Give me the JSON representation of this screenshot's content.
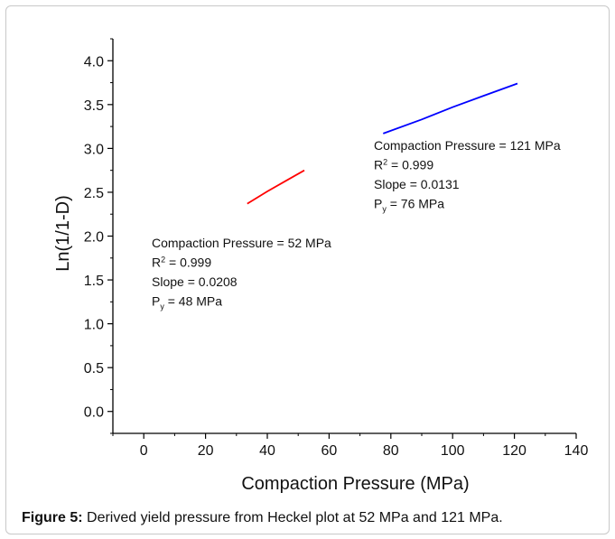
{
  "chart_data": {
    "type": "line",
    "xlabel": "Compaction Pressure (MPa)",
    "ylabel": "Ln(1/1-D)",
    "xlim": [
      -10,
      140
    ],
    "ylim": [
      -0.25,
      4.25
    ],
    "xticks": [
      0,
      20,
      40,
      60,
      80,
      100,
      120,
      140
    ],
    "yticks": [
      0.0,
      0.5,
      1.0,
      1.5,
      2.0,
      2.5,
      3.0,
      3.5,
      4.0
    ],
    "xtick_labels": [
      "0",
      "20",
      "40",
      "60",
      "80",
      "100",
      "120",
      "140"
    ],
    "ytick_labels": [
      "0.0",
      "0.5",
      "1.0",
      "1.5",
      "2.0",
      "2.5",
      "3.0",
      "3.5",
      "4.0"
    ],
    "grid": false,
    "series": [
      {
        "color": "#ff0000",
        "x": [
          33.5,
          40,
          46,
          52
        ],
        "y": [
          2.37,
          2.51,
          2.63,
          2.75
        ]
      },
      {
        "color": "#0000ff",
        "x": [
          77.5,
          90,
          100,
          110,
          121
        ],
        "y": [
          3.17,
          3.33,
          3.47,
          3.6,
          3.74
        ]
      }
    ],
    "annotations": [
      {
        "series_index": 1,
        "line1": "Compaction Pressure = 121 MPa",
        "r2_label": "R",
        "r2_sup": "2",
        "r2_value": " = 0.999",
        "slope": "Slope = 0.0131",
        "py_label": "P",
        "py_sub": "y",
        "py_value": " =  76 MPa"
      },
      {
        "series_index": 0,
        "line1": "Compaction Pressure = 52 MPa",
        "r2_label": "R",
        "r2_sup": "2",
        "r2_value": " = 0.999",
        "slope": "Slope = 0.0208",
        "py_label": "P",
        "py_sub": "y",
        "py_value": " = 48 MPa"
      }
    ]
  },
  "caption": {
    "bold": "Figure 5:",
    "text": " Derived yield pressure from Heckel plot at 52 MPa and 121 MPa."
  }
}
